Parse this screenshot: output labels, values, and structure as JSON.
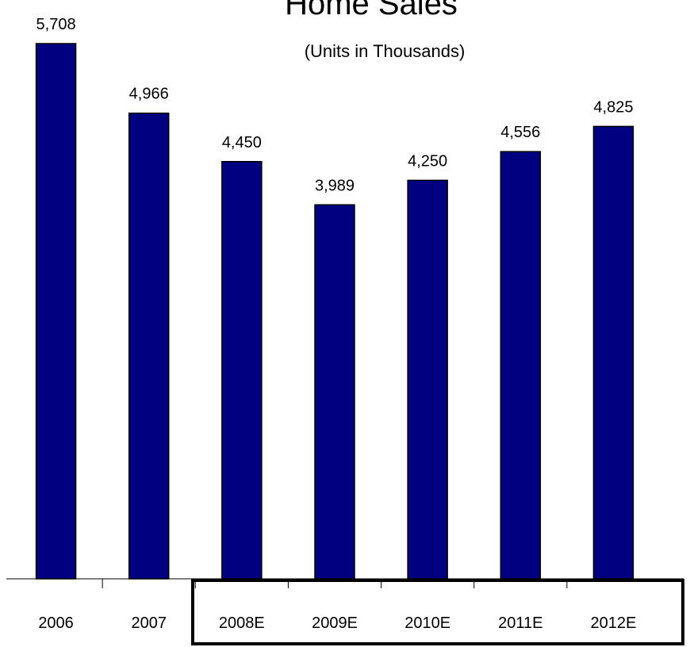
{
  "chart_data": {
    "type": "bar",
    "title": "Home Sales",
    "subtitle": "(Units in Thousands)",
    "categories": [
      "2006",
      "2007",
      "2008E",
      "2009E",
      "2010E",
      "2011E",
      "2012E"
    ],
    "values": [
      5708,
      4966,
      4450,
      3989,
      4250,
      4556,
      4825
    ],
    "data_labels": [
      "5,708",
      "4,966",
      "4,450",
      "3,989",
      "4,250",
      "4,556",
      "4,825"
    ],
    "ylim": [
      0,
      5708
    ],
    "grid": false,
    "bar_color": "#000080",
    "estimate_box_categories": [
      "2008E",
      "2009E",
      "2010E",
      "2011E",
      "2012E"
    ]
  }
}
